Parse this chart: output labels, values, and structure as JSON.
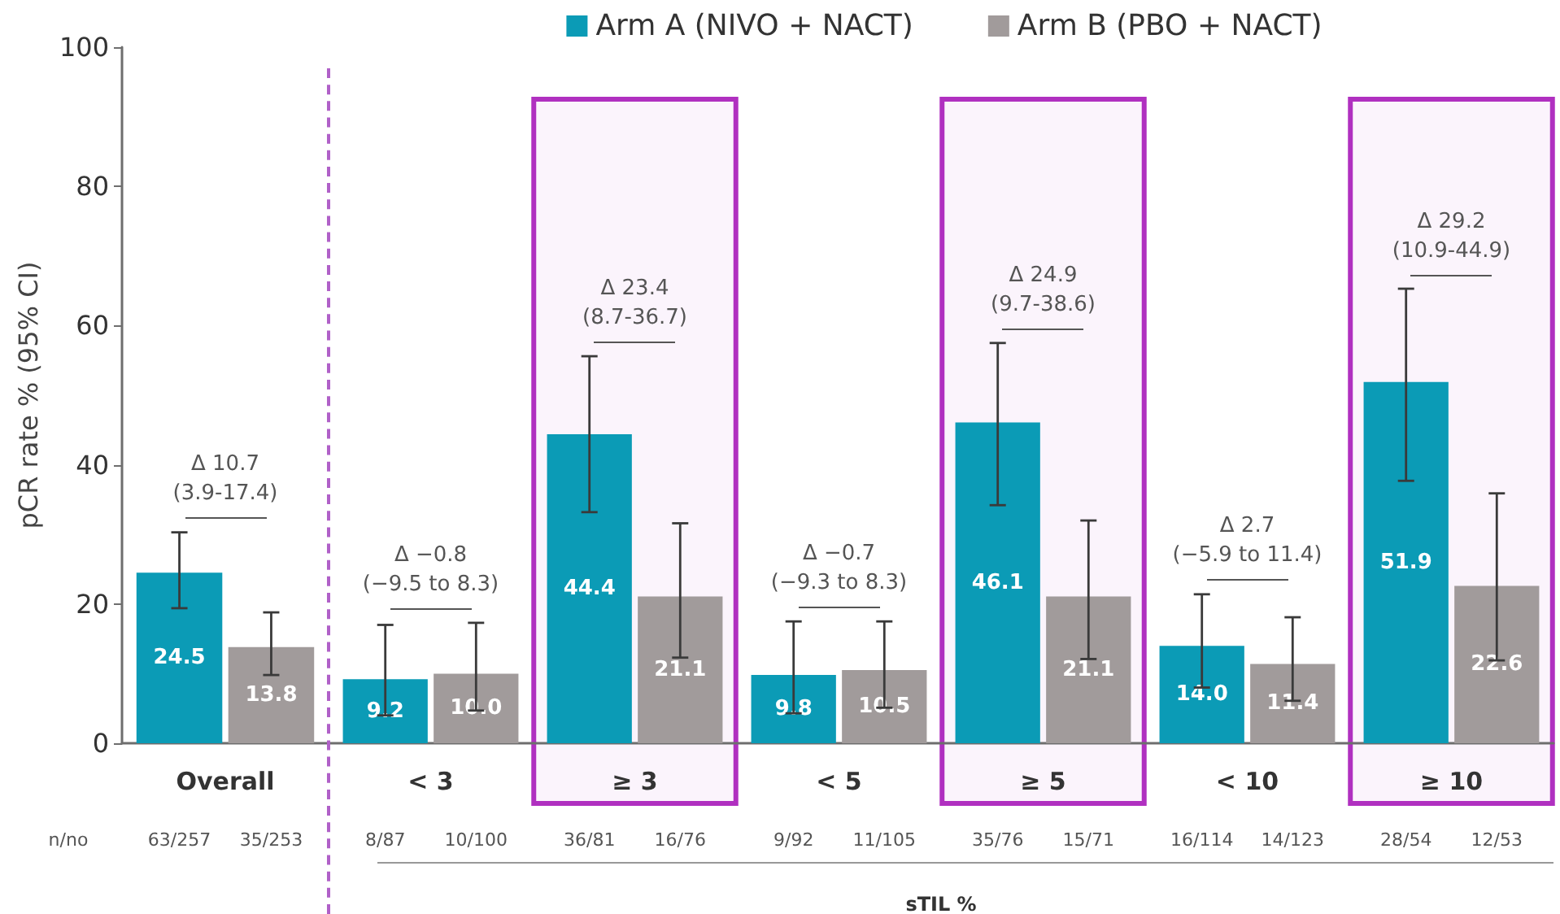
{
  "chart_data": [
    {
      "type": "bar",
      "ylabel": "pCR rate % (95% CI)",
      "categories": [
        "Overall"
      ],
      "series": [
        {
          "color": "#0b9bb6",
          "values": [
            24.5
          ],
          "value_labels": [
            "24.5"
          ],
          "errors": [
            [
              19.4,
              30.3
            ]
          ]
        },
        {
          "color": "#a19b9b",
          "values": [
            13.8
          ],
          "value_labels": [
            "13.8"
          ],
          "errors": [
            [
              9.8,
              18.8
            ]
          ]
        }
      ],
      "ylim": [
        0,
        100
      ],
      "yticks": [
        0,
        20,
        40,
        60,
        80,
        100
      ],
      "annotations": [
        "Δ 10.7\n(3.9-17.4)",
        "n/no",
        "63/257",
        "35/253"
      ]
    },
    {
      "type": "bar",
      "xlabel": "sTIL %",
      "categories": [
        "< 3",
        "≥ 3",
        "< 5",
        "≥ 5",
        "< 10",
        "≥ 10"
      ],
      "series": [
        {
          "name": "Arm A (NIVO + NACT)",
          "color": "#0b9bb6",
          "values": [
            9.2,
            44.4,
            9.8,
            46.1,
            14.0,
            51.9
          ],
          "value_labels": [
            "9.2",
            "44.4",
            "9.8",
            "46.1",
            "14.0",
            "51.9"
          ],
          "errors": [
            [
              4.0,
              17.0
            ],
            [
              33.2,
              55.6
            ],
            [
              4.3,
              17.5
            ],
            [
              34.2,
              57.5
            ],
            [
              8.0,
              21.4
            ],
            [
              37.7,
              65.3
            ]
          ]
        },
        {
          "name": "Arm B (PBO + NACT)",
          "color": "#a19b9b",
          "values": [
            10.0,
            21.1,
            10.5,
            21.1,
            11.4,
            22.6
          ],
          "value_labels": [
            "10.0",
            "21.1",
            "10.5",
            "21.1",
            "11.4",
            "22.6"
          ],
          "errors": [
            [
              4.7,
              17.3
            ],
            [
              12.3,
              31.6
            ],
            [
              5.1,
              17.5
            ],
            [
              12.1,
              32.0
            ],
            [
              6.1,
              18.1
            ],
            [
              11.9,
              35.9
            ]
          ]
        }
      ],
      "ylim": [
        0,
        100
      ],
      "yticks": [
        0,
        20,
        40,
        60,
        80,
        100
      ],
      "tick_labels": "x",
      "legend": "top",
      "bands": [
        {
          "axis": "x",
          "from": "≥ 3",
          "to": "≥ 3",
          "color": "#b030c0"
        },
        {
          "axis": "x",
          "from": "≥ 5",
          "to": "≥ 5",
          "color": "#b030c0"
        },
        {
          "axis": "x",
          "from": "≥ 10",
          "to": "≥ 10",
          "color": "#b030c0"
        }
      ],
      "annotations": [
        "Δ −0.8\n(−9.5 to 8.3)",
        "Δ 23.4\n(8.7-36.7)",
        "Δ −0.7\n(−9.3 to 8.3)",
        "Δ 24.9\n(9.7-38.6)",
        "Δ 2.7\n(−5.9 to 11.4)",
        "Δ 29.2\n(10.9-44.9)",
        "8/87",
        "10/100",
        "36/81",
        "16/76",
        "9/92",
        "11/105",
        "35/76",
        "15/71",
        "16/114",
        "14/123",
        "28/54",
        "12/53"
      ]
    }
  ]
}
